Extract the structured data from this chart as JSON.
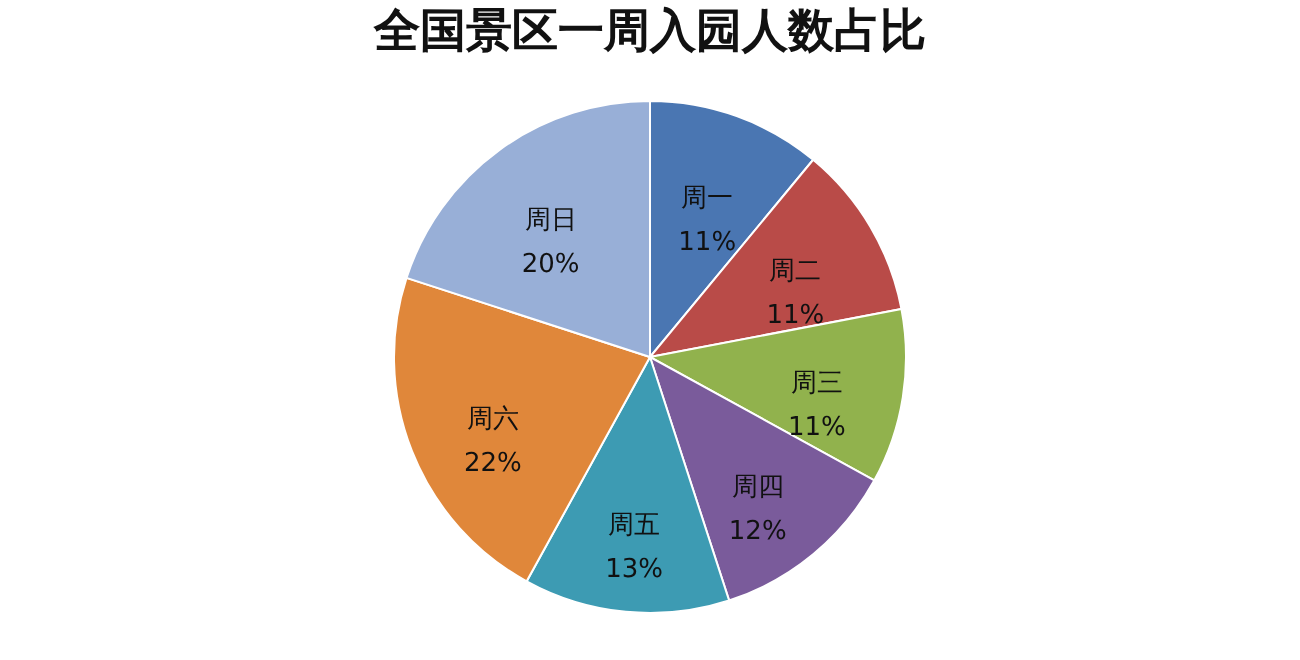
{
  "chart_data": {
    "type": "pie",
    "title": "全国景区一周入园人数占比",
    "categories": [
      "周一",
      "周二",
      "周三",
      "周四",
      "周五",
      "周六",
      "周日"
    ],
    "values": [
      11,
      11,
      11,
      12,
      13,
      22,
      20
    ],
    "value_labels": [
      "11%",
      "11%",
      "11%",
      "12%",
      "13%",
      "22%",
      "20%"
    ],
    "colors": [
      "#4a76b2",
      "#b94b48",
      "#91b24d",
      "#7a5b9b",
      "#3d9bb3",
      "#e0873a",
      "#98afd7"
    ],
    "legend": false
  }
}
